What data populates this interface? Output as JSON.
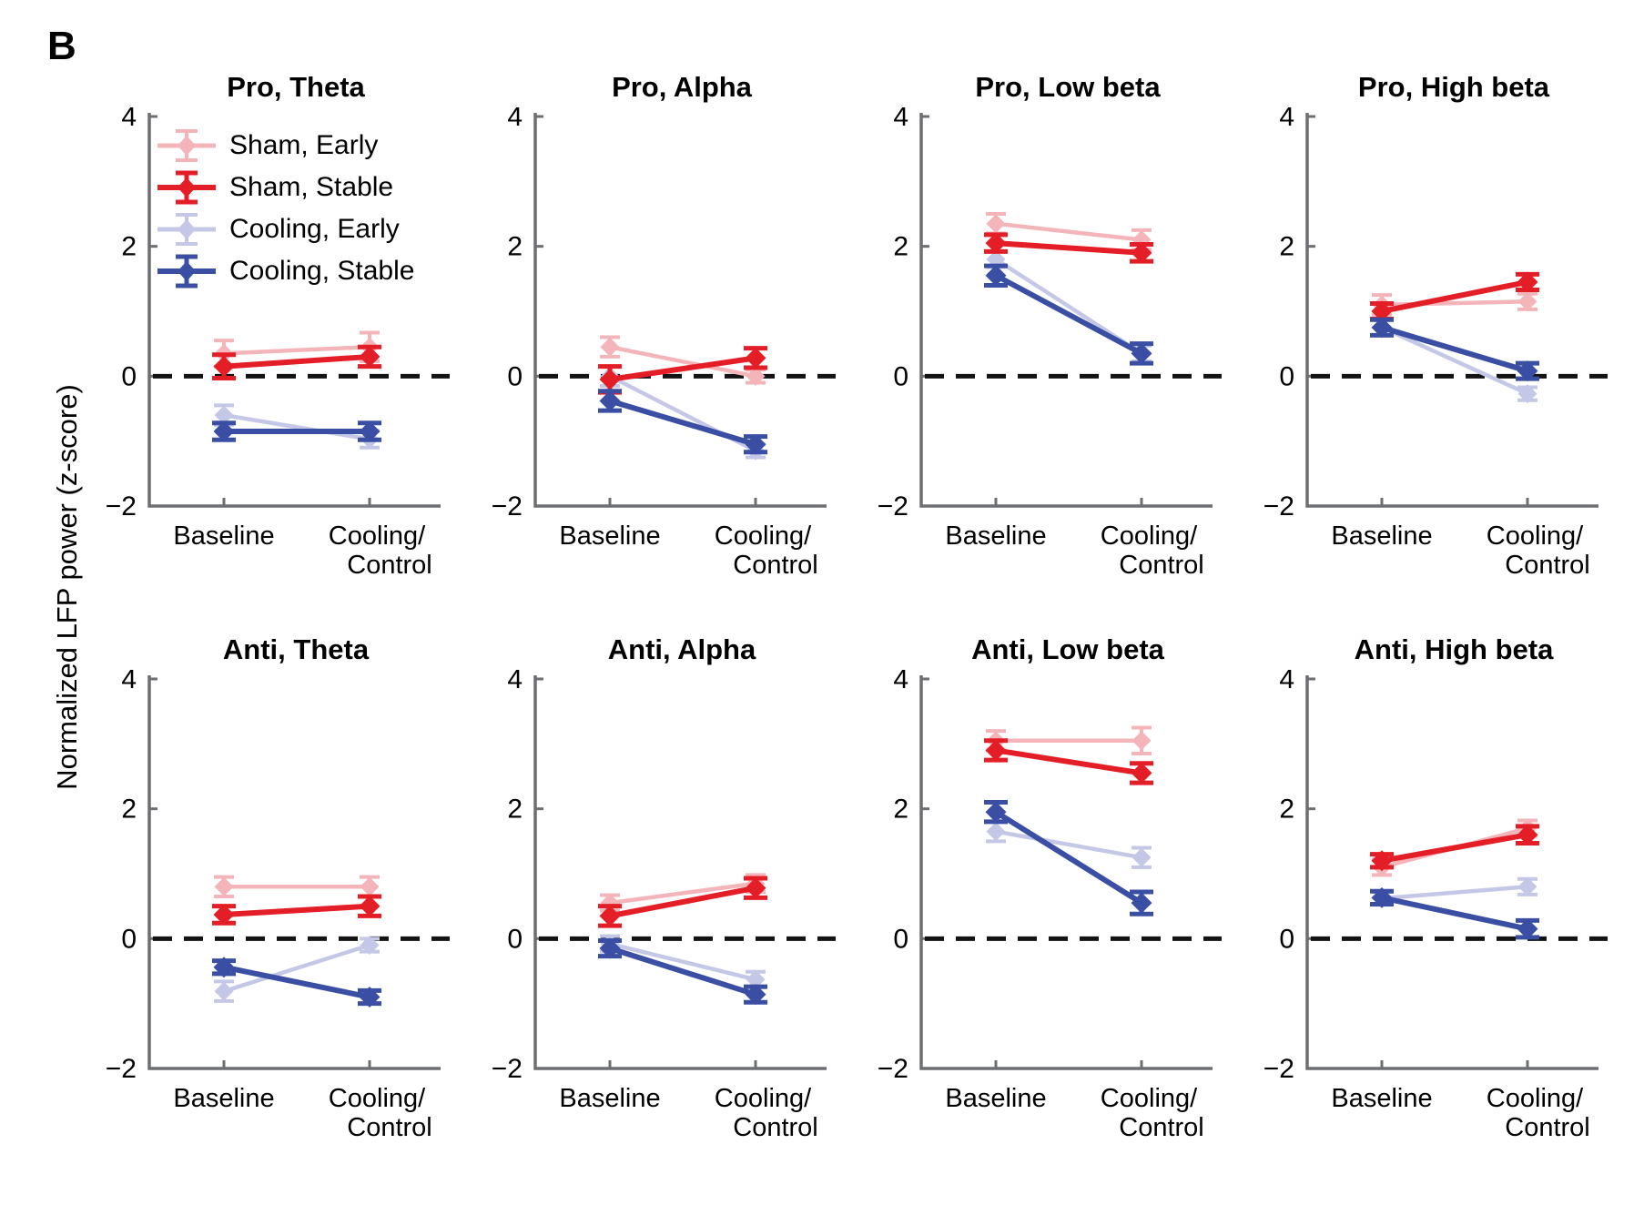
{
  "figure_label": "B",
  "y_axis_label": "Normalized LFP power (z-score)",
  "colors": {
    "sham_early": "#f4b5ba",
    "sham_stable": "#e41e26",
    "cooling_early": "#c4c8e6",
    "cooling_stable": "#3a4fa4",
    "axis": "#6d6e71",
    "zero_line": "#131313",
    "text": "#000000"
  },
  "chart_data": {
    "type": "line",
    "categories": [
      "Baseline",
      "Cooling/Control"
    ],
    "x_tick_label_lines": [
      [
        "Baseline"
      ],
      [
        "Cooling/",
        "Control"
      ]
    ],
    "ylim": [
      -2,
      4
    ],
    "yticks": [
      {
        "v": 4,
        "label": "4"
      },
      {
        "v": 2,
        "label": "2"
      },
      {
        "v": 0,
        "label": "0"
      },
      {
        "v": -2,
        "label": "−2"
      }
    ],
    "zero_line": true,
    "legend_position": "top-left-first-panel",
    "series_defs": [
      {
        "name": "Sham, Early",
        "color": "#f4b5ba",
        "weight": "early"
      },
      {
        "name": "Sham, Stable",
        "color": "#e41e26",
        "weight": "stable"
      },
      {
        "name": "Cooling, Early",
        "color": "#c4c8e6",
        "weight": "early"
      },
      {
        "name": "Cooling, Stable",
        "color": "#3a4fa4",
        "weight": "stable"
      }
    ],
    "panels": [
      {
        "title": "Pro, Theta",
        "series": [
          {
            "name": "Sham, Early",
            "values": [
              0.35,
              0.45
            ],
            "errors": [
              0.2,
              0.22
            ]
          },
          {
            "name": "Sham, Stable",
            "values": [
              0.15,
              0.3
            ],
            "errors": [
              0.18,
              0.15
            ]
          },
          {
            "name": "Cooling, Early",
            "values": [
              -0.6,
              -0.97
            ],
            "errors": [
              0.15,
              0.13
            ]
          },
          {
            "name": "Cooling, Stable",
            "values": [
              -0.85,
              -0.85
            ],
            "errors": [
              0.13,
              0.13
            ]
          }
        ]
      },
      {
        "title": "Pro, Alpha",
        "series": [
          {
            "name": "Sham, Early",
            "values": [
              0.45,
              0.0
            ],
            "errors": [
              0.15,
              0.1
            ]
          },
          {
            "name": "Sham, Stable",
            "values": [
              -0.05,
              0.28
            ],
            "errors": [
              0.2,
              0.15
            ]
          },
          {
            "name": "Cooling, Early",
            "values": [
              0.0,
              -1.15
            ],
            "errors": [
              0.15,
              0.1
            ]
          },
          {
            "name": "Cooling, Stable",
            "values": [
              -0.38,
              -1.05
            ],
            "errors": [
              0.15,
              0.12
            ]
          }
        ]
      },
      {
        "title": "Pro, Low beta",
        "series": [
          {
            "name": "Sham, Early",
            "values": [
              2.35,
              2.1
            ],
            "errors": [
              0.15,
              0.15
            ]
          },
          {
            "name": "Sham, Stable",
            "values": [
              2.05,
              1.9
            ],
            "errors": [
              0.13,
              0.13
            ]
          },
          {
            "name": "Cooling, Early",
            "values": [
              1.8,
              0.35
            ],
            "errors": [
              0.12,
              0.12
            ]
          },
          {
            "name": "Cooling, Stable",
            "values": [
              1.55,
              0.35
            ],
            "errors": [
              0.15,
              0.15
            ]
          }
        ]
      },
      {
        "title": "Pro, High beta",
        "series": [
          {
            "name": "Sham, Early",
            "values": [
              1.1,
              1.15
            ],
            "errors": [
              0.15,
              0.12
            ]
          },
          {
            "name": "Sham, Stable",
            "values": [
              1.0,
              1.45
            ],
            "errors": [
              0.12,
              0.12
            ]
          },
          {
            "name": "Cooling, Early",
            "values": [
              0.75,
              -0.27
            ],
            "errors": [
              0.12,
              0.1
            ]
          },
          {
            "name": "Cooling, Stable",
            "values": [
              0.75,
              0.08
            ],
            "errors": [
              0.12,
              0.12
            ]
          }
        ]
      },
      {
        "title": "Anti, Theta",
        "series": [
          {
            "name": "Sham, Early",
            "values": [
              0.8,
              0.8
            ],
            "errors": [
              0.15,
              0.15
            ]
          },
          {
            "name": "Sham, Stable",
            "values": [
              0.37,
              0.5
            ],
            "errors": [
              0.13,
              0.15
            ]
          },
          {
            "name": "Cooling, Early",
            "values": [
              -0.81,
              -0.1
            ],
            "errors": [
              0.15,
              0.1
            ]
          },
          {
            "name": "Cooling, Stable",
            "values": [
              -0.44,
              -0.9
            ],
            "errors": [
              0.1,
              0.1
            ]
          }
        ]
      },
      {
        "title": "Anti, Alpha",
        "series": [
          {
            "name": "Sham, Early",
            "values": [
              0.55,
              0.85
            ],
            "errors": [
              0.12,
              0.13
            ]
          },
          {
            "name": "Sham, Stable",
            "values": [
              0.35,
              0.78
            ],
            "errors": [
              0.15,
              0.15
            ]
          },
          {
            "name": "Cooling, Early",
            "values": [
              -0.08,
              -0.63
            ],
            "errors": [
              0.12,
              0.12
            ]
          },
          {
            "name": "Cooling, Stable",
            "values": [
              -0.15,
              -0.86
            ],
            "errors": [
              0.12,
              0.12
            ]
          }
        ]
      },
      {
        "title": "Anti, Low beta",
        "series": [
          {
            "name": "Sham, Early",
            "values": [
              3.05,
              3.05
            ],
            "errors": [
              0.15,
              0.2
            ]
          },
          {
            "name": "Sham, Stable",
            "values": [
              2.9,
              2.55
            ],
            "errors": [
              0.15,
              0.15
            ]
          },
          {
            "name": "Cooling, Early",
            "values": [
              1.65,
              1.25
            ],
            "errors": [
              0.15,
              0.15
            ]
          },
          {
            "name": "Cooling, Stable",
            "values": [
              1.95,
              0.55
            ],
            "errors": [
              0.15,
              0.17
            ]
          }
        ]
      },
      {
        "title": "Anti, High beta",
        "series": [
          {
            "name": "Sham, Early",
            "values": [
              1.1,
              1.7
            ],
            "errors": [
              0.12,
              0.12
            ]
          },
          {
            "name": "Sham, Stable",
            "values": [
              1.2,
              1.6
            ],
            "errors": [
              0.1,
              0.13
            ]
          },
          {
            "name": "Cooling, Early",
            "values": [
              0.62,
              0.8
            ],
            "errors": [
              0.1,
              0.12
            ]
          },
          {
            "name": "Cooling, Stable",
            "values": [
              0.63,
              0.15
            ],
            "errors": [
              0.1,
              0.13
            ]
          }
        ]
      }
    ]
  }
}
